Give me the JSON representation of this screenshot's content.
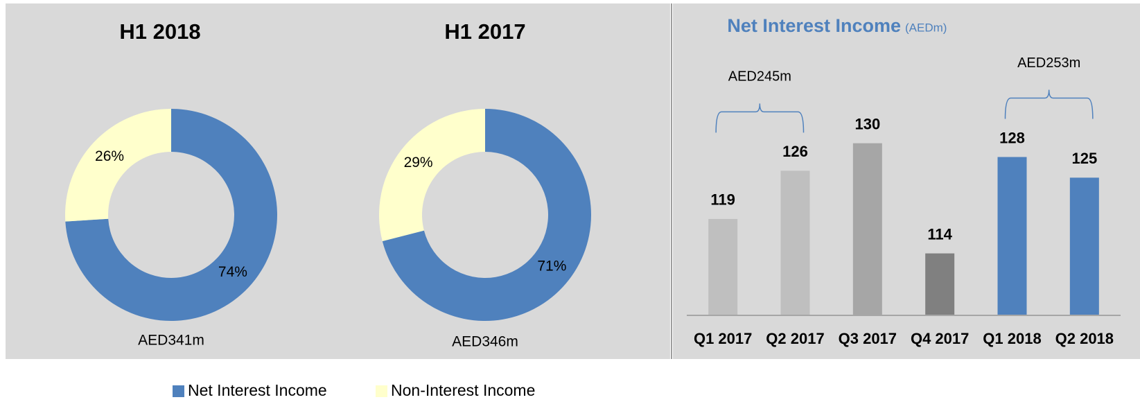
{
  "chart_data": [
    {
      "type": "pie",
      "title": "H1 2018",
      "total_label": "AED341m",
      "categories": [
        "Net Interest Income",
        "Non-Interest Income"
      ],
      "values": [
        74,
        26
      ],
      "value_labels": [
        "74%",
        "26%"
      ],
      "colors": [
        "#4f81bd",
        "#ffffcc"
      ]
    },
    {
      "type": "pie",
      "title": "H1 2017",
      "total_label": "AED346m",
      "values": [
        71,
        29
      ],
      "value_labels": [
        "71%",
        "29%"
      ],
      "colors": [
        "#4f81bd",
        "#ffffcc"
      ]
    },
    {
      "type": "bar",
      "title": "Net Interest Income",
      "subtitle": "(AEDm)",
      "categories": [
        "Q1 2017",
        "Q2 2017",
        "Q3 2017",
        "Q4 2017",
        "Q1 2018",
        "Q2 2018"
      ],
      "values": [
        119,
        126,
        130,
        114,
        128,
        125
      ],
      "colors": [
        "#bfbfbf",
        "#bfbfbf",
        "#a6a6a6",
        "#808080",
        "#4f81bd",
        "#4f81bd"
      ],
      "ylim": [
        105,
        135
      ],
      "annotations": [
        {
          "text": "AED245m",
          "span": [
            "Q1 2017",
            "Q2 2017"
          ]
        },
        {
          "text": "AED253m",
          "span": [
            "Q1 2018",
            "Q2 2018"
          ]
        }
      ]
    }
  ]
}
